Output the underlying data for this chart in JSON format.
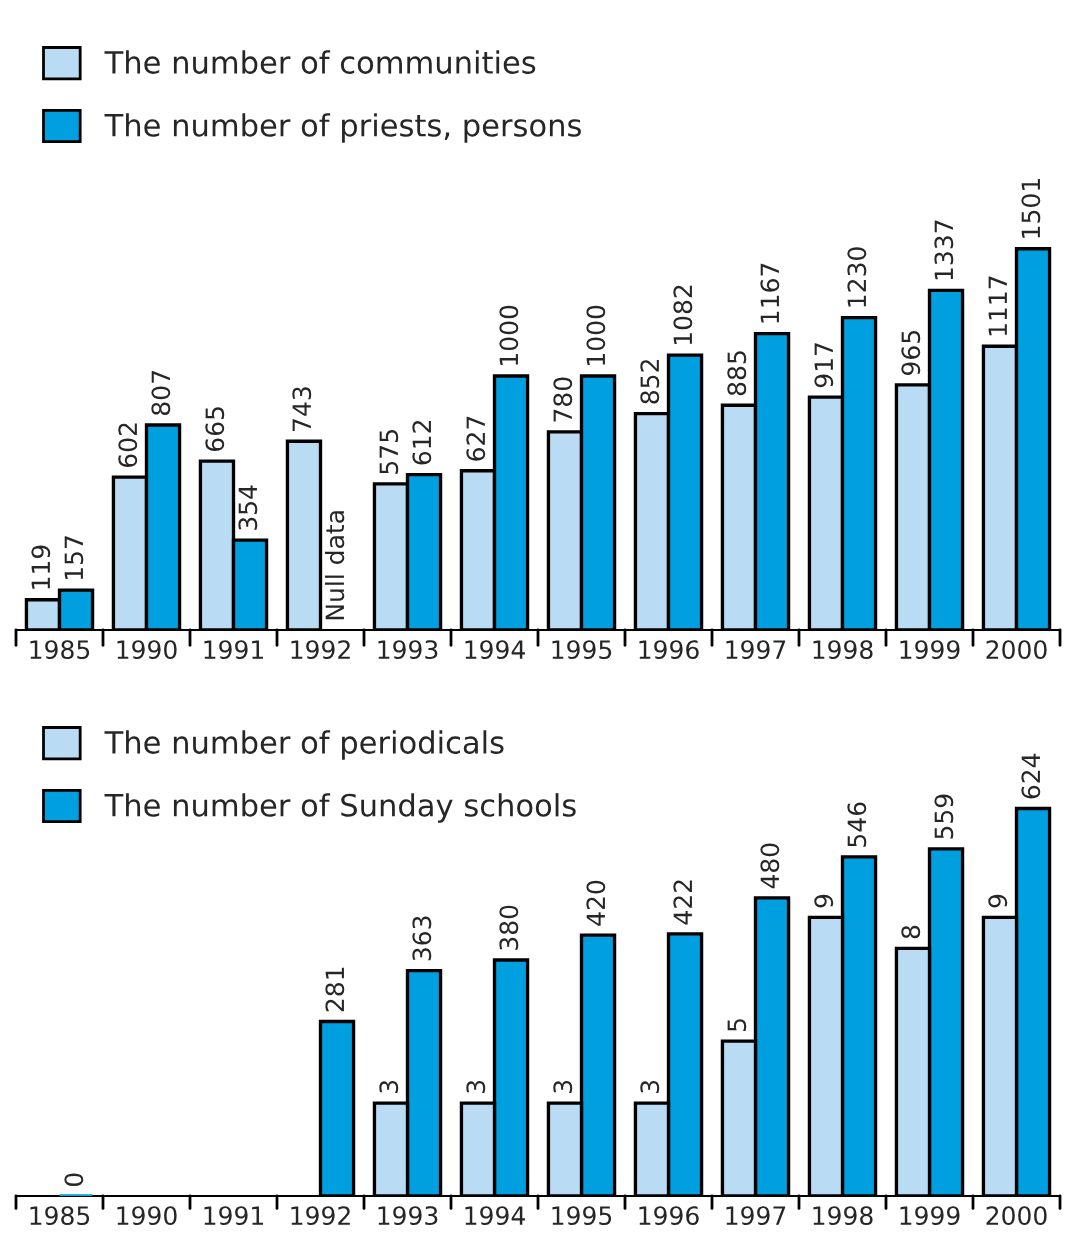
{
  "chart_data": [
    {
      "type": "bar",
      "categories": [
        "1985",
        "1990",
        "1991",
        "1992",
        "1993",
        "1994",
        "1995",
        "1996",
        "1997",
        "1998",
        "1999",
        "2000"
      ],
      "tick_labels": "x",
      "legend": "top left",
      "grid": false,
      "series": [
        {
          "name": "The number of communities",
          "color": "#b9dcf4",
          "values": [
            119,
            602,
            665,
            743,
            575,
            627,
            780,
            852,
            885,
            917,
            965,
            1117
          ],
          "value_labels": [
            "119",
            "602",
            "665",
            "743",
            "575",
            "627",
            "780",
            "852",
            "885",
            "917",
            "965",
            "1117"
          ]
        },
        {
          "name": "The number of priests, persons",
          "color": "#00a0e0",
          "values": [
            157,
            807,
            354,
            null,
            612,
            1000,
            1000,
            1082,
            1167,
            1230,
            1337,
            1501
          ],
          "value_labels": [
            "157",
            "807",
            "354",
            "Null data",
            "612",
            "1000",
            "1000",
            "1082",
            "1167",
            "1230",
            "1337",
            "1501"
          ]
        }
      ]
    },
    {
      "type": "bar",
      "categories": [
        "1985",
        "1990",
        "1991",
        "1992",
        "1993",
        "1994",
        "1995",
        "1996",
        "1997",
        "1998",
        "1999",
        "2000"
      ],
      "tick_labels": "x",
      "legend": "top left",
      "grid": false,
      "series": [
        {
          "name": "The number of periodicals",
          "color": "#b9dcf4",
          "axis": "y2",
          "values": [
            null,
            null,
            null,
            null,
            3,
            3,
            3,
            3,
            5,
            9,
            8,
            9
          ],
          "value_labels": [
            null,
            null,
            null,
            null,
            "3",
            "3",
            "3",
            "3",
            "5",
            "9",
            "8",
            "9"
          ]
        },
        {
          "name": "The number of Sunday schools",
          "color": "#00a0e0",
          "values": [
            0,
            null,
            null,
            281,
            363,
            380,
            420,
            422,
            480,
            546,
            559,
            624
          ],
          "value_labels": [
            "0",
            null,
            null,
            "281",
            "363",
            "380",
            "420",
            "422",
            "480",
            "546",
            "559",
            "624"
          ]
        }
      ]
    }
  ]
}
